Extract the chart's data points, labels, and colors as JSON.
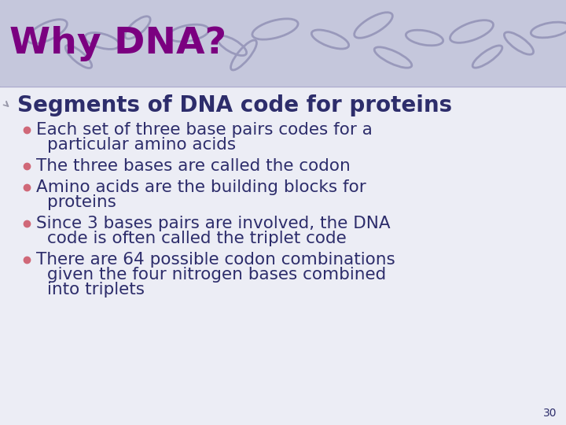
{
  "title": "Why DNA?",
  "title_color": "#7B0080",
  "title_fontsize": 34,
  "subtitle": "Segments of DNA code for proteins",
  "subtitle_color": "#2D2D6B",
  "subtitle_fontsize": 20,
  "bullet_color": "#2D2D6B",
  "bullet_fontsize": 15.5,
  "bullet_marker_color": "#D06878",
  "header_bg": "#C5C7DC",
  "slide_bg": "#ECEDF5",
  "swirl_color": "#9999BB",
  "bullets": [
    [
      "Each set of three base pairs codes for a",
      "particular amino acids"
    ],
    [
      "The three bases are called the codon"
    ],
    [
      "Amino acids are the building blocks for",
      "proteins"
    ],
    [
      "Since 3 bases pairs are involved, the DNA",
      "code is often called the triplet code"
    ],
    [
      "There are 64 possible codon combinations",
      "given the four nitrogen bases combined",
      "into triplets"
    ]
  ],
  "page_number": "30",
  "page_num_color": "#2D2D6B",
  "page_num_fontsize": 10
}
